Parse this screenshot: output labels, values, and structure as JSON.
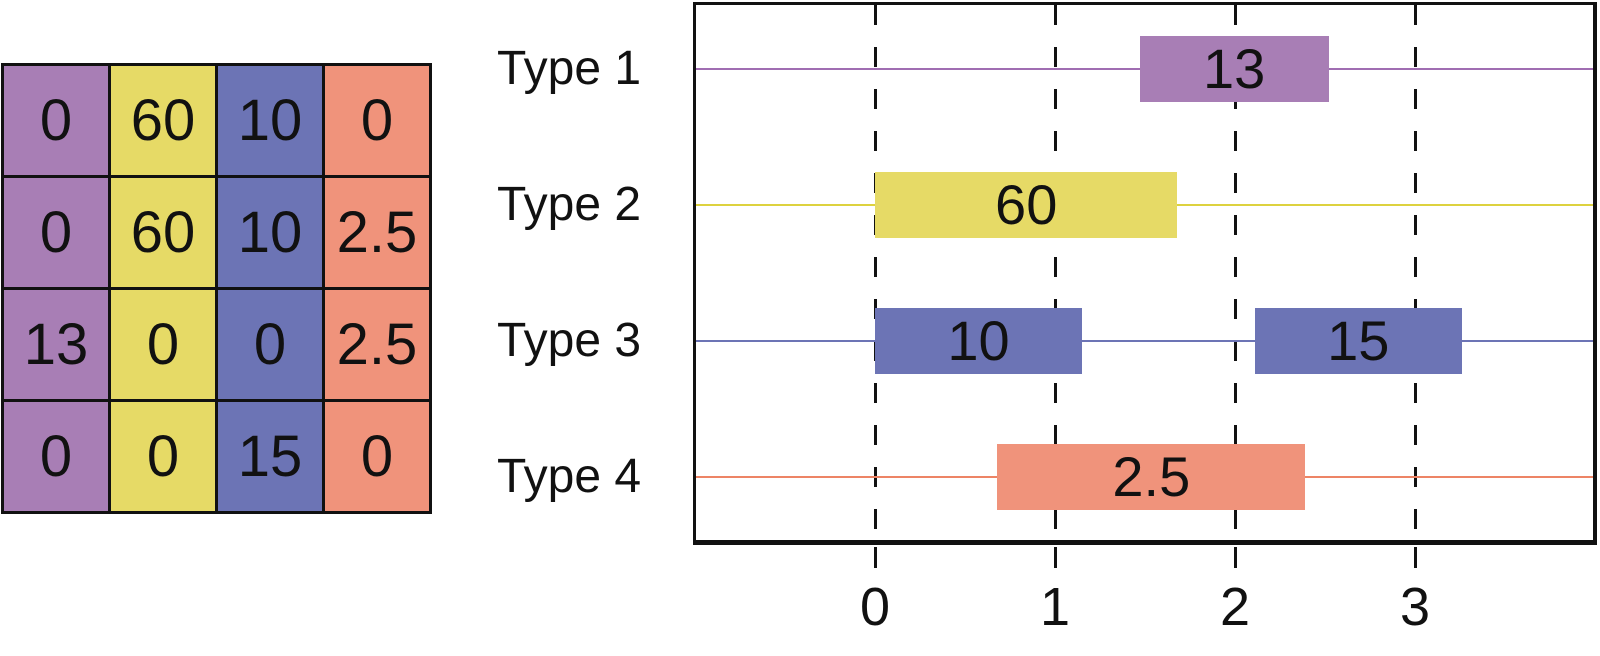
{
  "matrix": {
    "col_colors": [
      "#a87eb5",
      "#e6da66",
      "#6c74b5",
      "#f0937b"
    ],
    "rows": [
      [
        "0",
        "60",
        "10",
        "0"
      ],
      [
        "0",
        "60",
        "10",
        "2.5"
      ],
      [
        "13",
        "0",
        "0",
        "2.5"
      ],
      [
        "0",
        "0",
        "15",
        "0"
      ]
    ]
  },
  "chart_data": {
    "type": "gantt",
    "xlabel": "",
    "ylabel": "",
    "x_ticks": [
      "0",
      "1",
      "2",
      "3"
    ],
    "x_tick_values": [
      0,
      1,
      2,
      3
    ],
    "xlim": [
      -1.0,
      4.01
    ],
    "grid": "vertical-dashed",
    "rows": [
      {
        "label": "Type 1",
        "line_color": "#a06db2",
        "bar_color": "#a87eb5",
        "bars": [
          {
            "start": 1.47,
            "end": 2.52,
            "value": "13"
          }
        ]
      },
      {
        "label": "Type 2",
        "line_color": "#ddd23f",
        "bar_color": "#e6da66",
        "bars": [
          {
            "start": 0,
            "end": 1.68,
            "value": "60"
          }
        ]
      },
      {
        "label": "Type 3",
        "line_color": "#6c74b5",
        "bar_color": "#6c74b5",
        "bars": [
          {
            "start": 0,
            "end": 1.15,
            "value": "10"
          },
          {
            "start": 2.11,
            "end": 3.26,
            "value": "15"
          }
        ]
      },
      {
        "label": "Type 4",
        "line_color": "#ed8465",
        "bar_color": "#f0937b",
        "bars": [
          {
            "start": 0.68,
            "end": 2.39,
            "value": "2.5"
          }
        ]
      }
    ]
  }
}
